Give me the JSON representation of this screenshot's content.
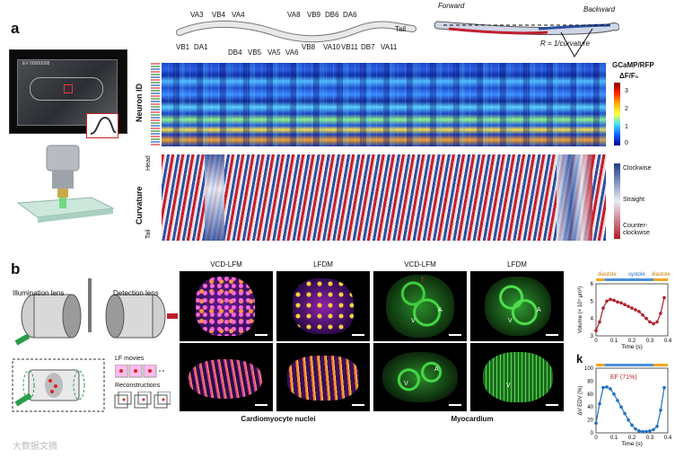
{
  "panel_a": {
    "label": "a",
    "device_label": "EV 00000008",
    "worm_neurons_top": [
      "VA3",
      "VB4",
      "VA4",
      "VA8",
      "VB9",
      "DB6",
      "DA6"
    ],
    "worm_neurons_bottom": [
      "VB1",
      "DA1",
      "DB4",
      "VB5",
      "VA5",
      "VA6",
      "VB8",
      "VA10",
      "VB11",
      "DB7",
      "VA11"
    ],
    "tail_label": "Tail",
    "forward_label": "Forward",
    "backward_label": "Backward",
    "curvature_formula": "R = 1/curvature",
    "heatmap_ylabel": "Neuron ID",
    "curv_ylabel": "Curvature",
    "head_label": "Head",
    "tail_axis_label": "Tail",
    "legend_title_1": "GCaMP/RFP",
    "legend_title_2": "ΔF/F₀",
    "colorbar_ticks": [
      "3",
      "2",
      "1",
      "0"
    ],
    "curv_legend": [
      "Clockwise",
      "Straight",
      "Counter-clockwise"
    ]
  },
  "panel_b": {
    "label": "b",
    "illumination_lens": "Illumination lens",
    "detection_lens": "Detection lens",
    "lf_movies": "LF movies",
    "reconstructions": "Reconstructions",
    "col_titles": [
      "VCD-LFM",
      "LFDM",
      "VCD-LFM",
      "LFDM"
    ],
    "group_captions": [
      "Cardiomyocyte nuclei",
      "Myocardium"
    ],
    "marker_v": "V",
    "marker_a": "A"
  },
  "chart_top": {
    "phase_labels": [
      "diastole",
      "systole",
      "diastole"
    ],
    "ylabel": "Volume (× 10⁵ μm³)",
    "xlabel": "Time (s)",
    "yticks": [
      "6",
      "5",
      "4",
      "3"
    ],
    "xticks": [
      "0",
      "0.1",
      "0.2",
      "0.3",
      "0.4"
    ]
  },
  "chart_bottom": {
    "label": "k",
    "annotation": "EF (71%)",
    "ylabel": "ΔV EDV (%)",
    "xlabel": "Time (s)",
    "yticks": [
      "100",
      "80",
      "60",
      "40",
      "20",
      "0"
    ],
    "xticks": [
      "0",
      "0.1",
      "0.2",
      "0.3",
      "0.4"
    ]
  },
  "chart_data": [
    {
      "type": "line",
      "title": "",
      "xlabel": "Time (s)",
      "ylabel": "Volume (× 10⁵ μm³)",
      "xlim": [
        0,
        0.4
      ],
      "ylim": [
        3,
        6
      ],
      "x": [
        0,
        0.02,
        0.04,
        0.06,
        0.08,
        0.1,
        0.12,
        0.14,
        0.16,
        0.18,
        0.2,
        0.22,
        0.24,
        0.26,
        0.28,
        0.3,
        0.32,
        0.34,
        0.36,
        0.38
      ],
      "series": [
        {
          "name": "Volume",
          "values": [
            3.3,
            3.8,
            4.6,
            5.0,
            5.1,
            5.05,
            4.95,
            4.9,
            4.8,
            4.7,
            4.6,
            4.5,
            4.4,
            4.2,
            4.0,
            3.8,
            3.7,
            3.8,
            4.3,
            5.2
          ]
        }
      ]
    },
    {
      "type": "line",
      "title": "",
      "xlabel": "Time (s)",
      "ylabel": "ΔV EDV (%)",
      "xlim": [
        0,
        0.4
      ],
      "ylim": [
        0,
        100
      ],
      "x": [
        0,
        0.02,
        0.04,
        0.06,
        0.08,
        0.1,
        0.12,
        0.14,
        0.16,
        0.18,
        0.2,
        0.22,
        0.24,
        0.26,
        0.28,
        0.3,
        0.32,
        0.34,
        0.36,
        0.38
      ],
      "series": [
        {
          "name": "EF",
          "values": [
            15,
            45,
            70,
            71,
            68,
            60,
            50,
            40,
            30,
            20,
            12,
            6,
            3,
            2,
            2,
            3,
            5,
            10,
            35,
            70
          ]
        }
      ]
    }
  ],
  "watermark": "大数据文摘"
}
